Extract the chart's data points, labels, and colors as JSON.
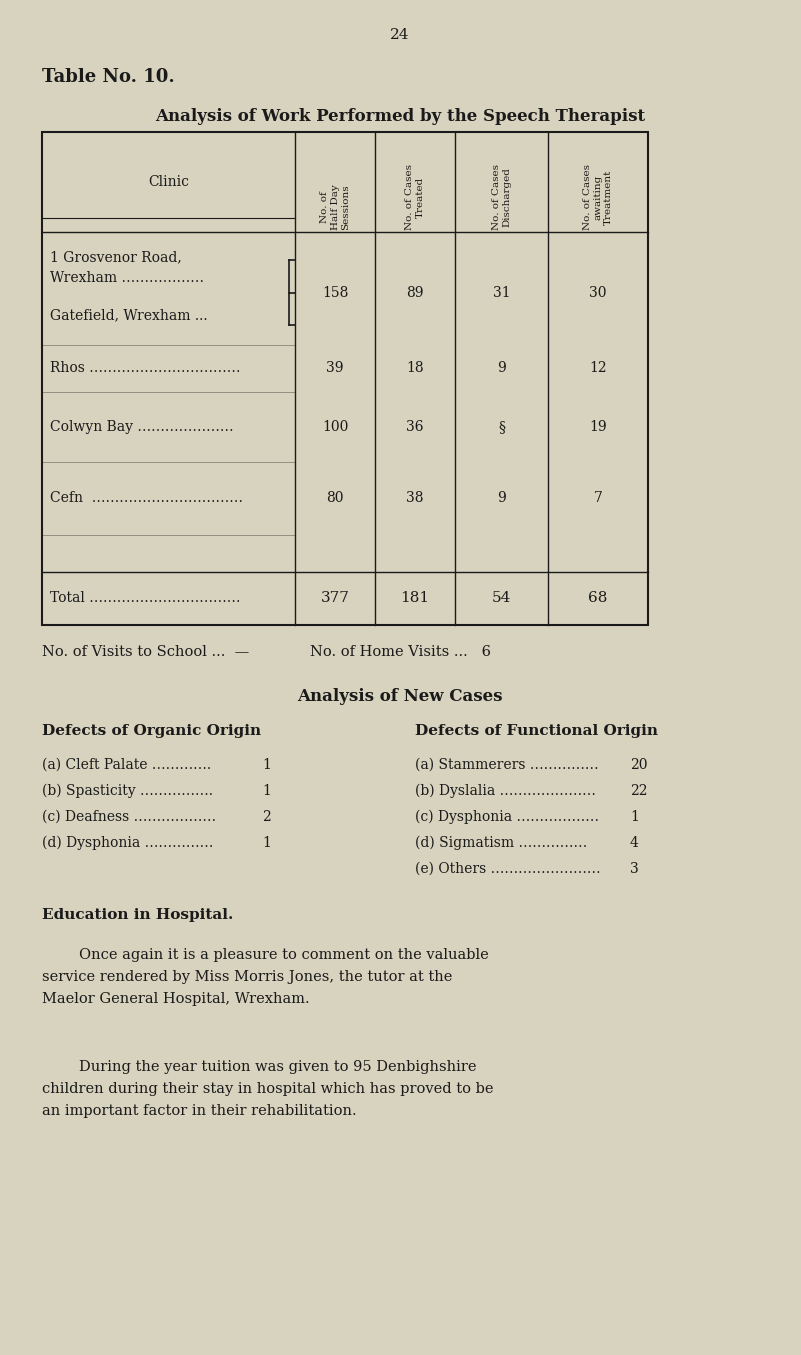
{
  "page_number": "24",
  "table_title_bold": "Table No. 10.",
  "table_subtitle": "Analysis of Work Performed by the Speech Therapist",
  "bg_color": "#d8d3be",
  "text_color": "#1a1a1a",
  "col_headers_rotated": [
    "No. of\nHalf Day\nSessions",
    "No. of Cases\nTreated",
    "No. of Cases\nDischarged",
    "No. of Cases\nawaiting\nTreatment"
  ],
  "visits_line1": "No. of Visits to School ...  —",
  "visits_line2": "No. of Home Visits ...   6",
  "new_cases_title": "Analysis of New Cases",
  "organic_title": "Defects of Organic Origin",
  "organic_items": [
    [
      "(a) Cleft Palate ………….",
      "1"
    ],
    [
      "(b) Spasticity …………….",
      "1"
    ],
    [
      "(c) Deafness ………………",
      "2"
    ],
    [
      "(d) Dysphonia ……………",
      "1"
    ]
  ],
  "functional_title": "Defects of Functional Origin",
  "functional_items": [
    [
      "(a) Stammerers ……………",
      "20"
    ],
    [
      "(b) Dyslalia …………………",
      "22"
    ],
    [
      "(c) Dysphonia ………………",
      "1"
    ],
    [
      "(d) Sigmatism ……………",
      "4"
    ],
    [
      "(e) Others ……………………",
      "3"
    ]
  ],
  "edu_title": "Education in Hospital.",
  "para1_lines": [
    "        Once again it is a pleasure to comment on the valuable",
    "service rendered by Miss Morris Jones, the tutor at the",
    "Maelor General Hospital, Wrexham."
  ],
  "para2_lines": [
    "        During the year tuition was given to 95 Denbighshire",
    "children during their stay in hospital which has proved to be",
    "an important factor in their rehabilitation."
  ]
}
